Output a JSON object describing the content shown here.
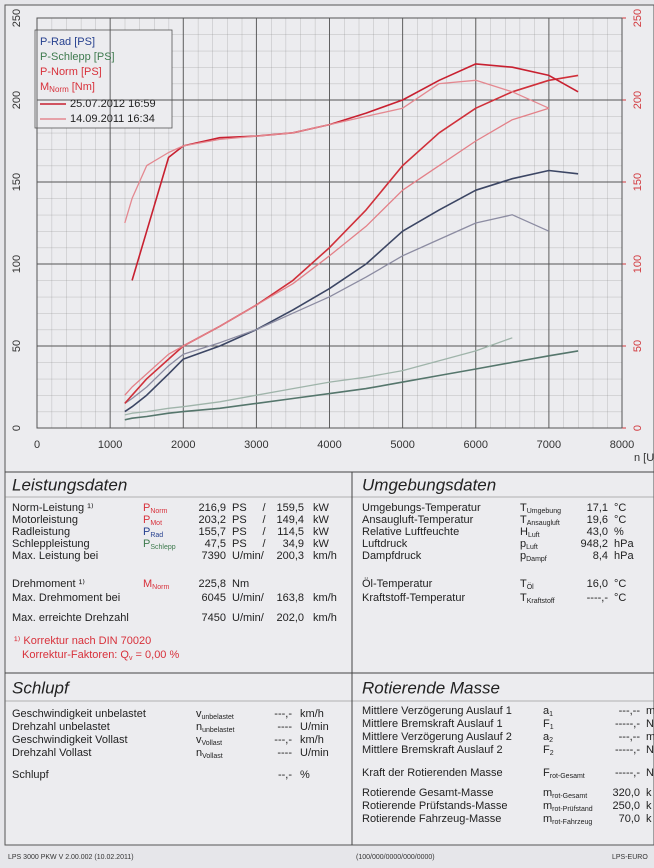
{
  "chart_data": {
    "type": "line",
    "xlabel": "n [U",
    "x": [
      1200,
      1300,
      1500,
      1800,
      2000,
      2500,
      3000,
      3500,
      4000,
      4500,
      5000,
      5500,
      6000,
      6500,
      7000,
      7400
    ],
    "xlim": [
      0,
      8000
    ],
    "xticks": [
      0,
      1000,
      2000,
      3000,
      4000,
      5000,
      6000,
      7000,
      8000
    ],
    "ylim": [
      0,
      250
    ],
    "yticks": [
      0,
      50,
      100,
      150,
      200,
      250
    ],
    "y2lim": [
      0,
      250
    ],
    "y2ticks": [
      0,
      50,
      100,
      150,
      200,
      250
    ],
    "grid": true,
    "runs_legend": [
      "25.07.2012 16:59",
      "14.09.2011 16:34"
    ],
    "series": [
      {
        "name": "P-Rad [PS]",
        "color": "#27418f",
        "runs": [
          {
            "color": "#3c4664",
            "values": [
              10,
              13,
              20,
              33,
              42,
              50,
              60,
              72,
              85,
              100,
              120,
              133,
              145,
              152,
              157,
              155
            ]
          },
          {
            "color": "#8c8ca2",
            "values": [
              15,
              18,
              25,
              38,
              45,
              52,
              60,
              70,
              80,
              92,
              105,
              115,
              125,
              130,
              120,
              null
            ]
          }
        ]
      },
      {
        "name": "P-Schlepp [PS]",
        "color": "#3e7a4e",
        "runs": [
          {
            "color": "#55766c",
            "values": [
              5,
              6,
              7,
              9,
              10,
              12,
              15,
              18,
              21,
              24,
              28,
              32,
              36,
              40,
              44,
              47
            ]
          },
          {
            "color": "#9fb4aa",
            "values": [
              8,
              9,
              10,
              12,
              13,
              16,
              20,
              24,
              28,
              31,
              35,
              41,
              47,
              55,
              null,
              null
            ]
          }
        ]
      },
      {
        "name": "P-Norm [PS]",
        "color": "#d8313b",
        "runs": [
          {
            "color": "#d0303a",
            "values": [
              15,
              20,
              30,
              42,
              50,
              62,
              75,
              90,
              110,
              133,
              160,
              180,
              195,
              205,
              212,
              215
            ]
          },
          {
            "color": "#e38088",
            "values": [
              20,
              25,
              33,
              45,
              50,
              62,
              75,
              88,
              105,
              123,
              145,
              160,
              175,
              188,
              195,
              null
            ]
          }
        ]
      },
      {
        "name": "M",
        "name_sub": "Norm",
        "name_unit": "[Nm]",
        "color": "#d8313b",
        "axis": "y2",
        "runs": [
          {
            "color": "#c82030",
            "values": [
              null,
              90,
              120,
              165,
              172,
              177,
              178,
              180,
              185,
              192,
              200,
              212,
              222,
              220,
              215,
              205
            ]
          },
          {
            "color": "#e48890",
            "values": [
              125,
              140,
              160,
              168,
              172,
              176,
              178,
              180,
              185,
              190,
              195,
              210,
              212,
              205,
              195,
              null
            ]
          }
        ]
      }
    ]
  },
  "sections": [
    {
      "title": "Leistungsdaten",
      "rows": [
        {
          "color": "#d8313b",
          "cells": [
            "Norm-Leistung ¹⁾",
            {
              "main": "P",
              "sub": "Norm"
            },
            "216,9",
            "PS",
            "/",
            "159,5",
            "kW"
          ]
        },
        {
          "color": "#d8313b",
          "cells": [
            "Motorleistung",
            {
              "main": "P",
              "sub": "Mot"
            },
            "203,2",
            "PS",
            "/",
            "149,4",
            "kW"
          ]
        },
        {
          "color": "#27418f",
          "cells": [
            "Radleistung",
            {
              "main": "P",
              "sub": "Rad"
            },
            "155,7",
            "PS",
            "/",
            "114,5",
            "kW"
          ]
        },
        {
          "color": "#3e7a4e",
          "cells": [
            "Schleppleistung",
            {
              "main": "P",
              "sub": "Schlepp"
            },
            "47,5",
            "PS",
            "/",
            "34,9",
            "kW"
          ]
        },
        {
          "cells": [
            "Max. Leistung bei",
            null,
            "7390",
            "U/min/",
            null,
            "200,3",
            "km/h"
          ]
        },
        {
          "color": "#d8313b",
          "cells": [
            "Drehmoment ¹⁾",
            {
              "main": "M",
              "sub": "Norm"
            },
            "225,8",
            "Nm"
          ]
        },
        {
          "cells": [
            "Max. Drehmoment bei",
            null,
            "6045",
            "U/min/",
            null,
            "163,8",
            "km/h"
          ]
        },
        {
          "cells": [
            "Max. erreichte Drehzahl",
            null,
            "7450",
            "U/min/",
            null,
            "202,0",
            "km/h"
          ]
        }
      ],
      "notes": [
        {
          "color": "#d8313b",
          "parts": [
            "¹⁾ Korrektur nach DIN 70020"
          ]
        },
        {
          "color": "#d8313b",
          "parts": [
            "Korrektur-Faktoren: ",
            {
              "main": "Q",
              "sub": "v"
            },
            " =   0,00 %"
          ]
        }
      ]
    },
    {
      "title": "Umgebungsdaten",
      "rows": [
        {
          "cells": [
            "Umgebungs-Temperatur",
            {
              "main": "T",
              "sub": "Umgebung"
            },
            "17,1",
            "°C"
          ]
        },
        {
          "cells": [
            "Ansaugluft-Temperatur",
            {
              "main": "T",
              "sub": "Ansaugluft"
            },
            "19,6",
            "°C"
          ]
        },
        {
          "cells": [
            "Relative Luftfeuchte",
            {
              "main": "H",
              "sub": "Luft"
            },
            "43,0",
            "%"
          ]
        },
        {
          "cells": [
            "Luftdruck",
            {
              "main": "p",
              "sub": "Luft"
            },
            "948,2",
            "hPa"
          ]
        },
        {
          "cells": [
            "Dampfdruck",
            {
              "main": "p",
              "sub": "Dampf"
            },
            "8,4",
            "hPa"
          ]
        },
        {
          "cells": [
            "Öl-Temperatur",
            {
              "main": "T",
              "sub": "Öl"
            },
            "16,0",
            "°C"
          ]
        },
        {
          "cells": [
            "Kraftstoff-Temperatur",
            {
              "main": "T",
              "sub": "Kraftstoff"
            },
            "----,-",
            "°C"
          ]
        }
      ]
    },
    {
      "title": "Schlupf",
      "rows": [
        {
          "cells": [
            "Geschwindigkeit unbelastet",
            {
              "main": "v",
              "sub": "unbelastet"
            },
            "---,-",
            "km/h"
          ]
        },
        {
          "cells": [
            "Drehzahl unbelastet",
            {
              "main": "n",
              "sub": "unbelastet"
            },
            "----",
            "U/min"
          ]
        },
        {
          "cells": [
            "Geschwindigkeit Vollast",
            {
              "main": "v",
              "sub": "Vollast"
            },
            "---,-",
            "km/h"
          ]
        },
        {
          "cells": [
            "Drehzahl Vollast",
            {
              "main": "n",
              "sub": "Vollast"
            },
            "----",
            "U/min"
          ]
        },
        {
          "cells": [
            "Schlupf",
            null,
            "--,-",
            "%"
          ]
        }
      ]
    },
    {
      "title": "Rotierende Masse",
      "rows": [
        {
          "cells": [
            "Mittlere Verzögerung Auslauf 1",
            {
              "main": "a",
              "sub": "1"
            },
            "---,--",
            "m"
          ]
        },
        {
          "cells": [
            "Mittlere Bremskraft Auslauf 1",
            {
              "main": "F",
              "sub": "1"
            },
            "-----,-",
            "N"
          ]
        },
        {
          "cells": [
            "Mittlere Verzögerung Auslauf 2",
            {
              "main": "a",
              "sub": "2"
            },
            "---,--",
            "m"
          ]
        },
        {
          "cells": [
            "Mittlere Bremskraft Auslauf 2",
            {
              "main": "F",
              "sub": "2"
            },
            "-----,-",
            "N"
          ]
        },
        {
          "cells": [
            "Kraft der Rotierenden Masse",
            {
              "main": "F",
              "sub": "rot-Gesamt"
            },
            "-----,-",
            "N"
          ]
        },
        {
          "cells": [
            "Rotierende Gesamt-Masse",
            {
              "main": "m",
              "sub": "rot-Gesamt"
            },
            "320,0",
            "k"
          ]
        },
        {
          "cells": [
            "Rotierende Prüfstands-Masse",
            {
              "main": "m",
              "sub": "rot-Prüfstand"
            },
            "250,0",
            "k"
          ]
        },
        {
          "cells": [
            "Rotierende Fahrzeug-Masse",
            {
              "main": "m",
              "sub": "rot-Fahrzeug"
            },
            "70,0",
            "k"
          ]
        }
      ]
    }
  ],
  "footer": {
    "left": "LPS 3000 PKW V 2.00.002 (10.02.2011)",
    "center": "(100/000/0000/000/0000)",
    "right": "LPS-EURO"
  }
}
